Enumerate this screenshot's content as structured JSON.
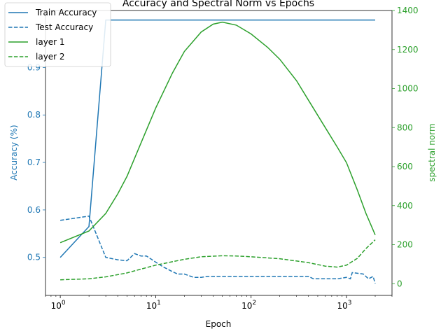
{
  "chart_data": {
    "type": "line",
    "title": "Accuracy and Spectral Norm vs Epochs",
    "xlabel": "Epoch",
    "xscale": "log",
    "xlim": [
      0.7,
      3000
    ],
    "xticks": [
      {
        "value": 1,
        "base": "10",
        "exp": "0"
      },
      {
        "value": 10,
        "base": "10",
        "exp": "1"
      },
      {
        "value": 100,
        "base": "10",
        "exp": "2"
      },
      {
        "value": 1000,
        "base": "10",
        "exp": "3"
      }
    ],
    "y_left": {
      "label": "Accuracy (%)",
      "lim": [
        0.42,
        1.02
      ],
      "ticks": [
        "0.5",
        "0.6",
        "0.7",
        "0.8",
        "0.9"
      ],
      "color": "#1f77b4"
    },
    "y_right": {
      "label": "spectral norm",
      "lim": [
        -60,
        1400
      ],
      "ticks": [
        "0",
        "200",
        "400",
        "600",
        "800",
        "1000",
        "1200",
        "1400"
      ],
      "color": "#2ca02c"
    },
    "grid": false,
    "legend_position": "top-left",
    "series": [
      {
        "name": "Train Accuracy",
        "axis": "left",
        "color": "#1f77b4",
        "style": "solid",
        "points": [
          [
            1,
            0.5
          ],
          [
            2,
            0.565
          ],
          [
            3,
            1.0
          ],
          [
            2000,
            1.0
          ]
        ]
      },
      {
        "name": "Test Accuracy",
        "axis": "left",
        "color": "#1f77b4",
        "style": "dashed",
        "points": [
          [
            1,
            0.578
          ],
          [
            2,
            0.587
          ],
          [
            3,
            0.5
          ],
          [
            4,
            0.495
          ],
          [
            5,
            0.493
          ],
          [
            6,
            0.508
          ],
          [
            7,
            0.503
          ],
          [
            8,
            0.503
          ],
          [
            10,
            0.49
          ],
          [
            12,
            0.48
          ],
          [
            15,
            0.47
          ],
          [
            17,
            0.465
          ],
          [
            20,
            0.465
          ],
          [
            25,
            0.458
          ],
          [
            30,
            0.458
          ],
          [
            35,
            0.46
          ],
          [
            50,
            0.46
          ],
          [
            100,
            0.46
          ],
          [
            200,
            0.46
          ],
          [
            400,
            0.46
          ],
          [
            450,
            0.455
          ],
          [
            800,
            0.455
          ],
          [
            1000,
            0.458
          ],
          [
            1100,
            0.455
          ],
          [
            1150,
            0.468
          ],
          [
            1500,
            0.465
          ],
          [
            1700,
            0.455
          ],
          [
            1900,
            0.46
          ],
          [
            2000,
            0.445
          ]
        ]
      },
      {
        "name": "layer 1",
        "axis": "right",
        "color": "#2ca02c",
        "style": "solid",
        "points": [
          [
            1,
            210
          ],
          [
            2,
            270
          ],
          [
            3,
            360
          ],
          [
            4,
            460
          ],
          [
            5,
            550
          ],
          [
            7,
            720
          ],
          [
            10,
            900
          ],
          [
            15,
            1080
          ],
          [
            20,
            1190
          ],
          [
            30,
            1290
          ],
          [
            40,
            1330
          ],
          [
            50,
            1340
          ],
          [
            70,
            1325
          ],
          [
            100,
            1280
          ],
          [
            150,
            1210
          ],
          [
            200,
            1150
          ],
          [
            300,
            1040
          ],
          [
            400,
            940
          ],
          [
            600,
            800
          ],
          [
            800,
            700
          ],
          [
            1000,
            620
          ],
          [
            1300,
            480
          ],
          [
            1600,
            360
          ],
          [
            2000,
            250
          ]
        ]
      },
      {
        "name": "layer 2",
        "axis": "right",
        "color": "#2ca02c",
        "style": "dashed",
        "points": [
          [
            1,
            20
          ],
          [
            2,
            25
          ],
          [
            3,
            35
          ],
          [
            5,
            55
          ],
          [
            10,
            95
          ],
          [
            20,
            125
          ],
          [
            30,
            138
          ],
          [
            50,
            143
          ],
          [
            70,
            142
          ],
          [
            100,
            138
          ],
          [
            200,
            128
          ],
          [
            400,
            108
          ],
          [
            600,
            90
          ],
          [
            800,
            85
          ],
          [
            1000,
            95
          ],
          [
            1300,
            130
          ],
          [
            1600,
            180
          ],
          [
            2000,
            225
          ]
        ]
      }
    ]
  }
}
